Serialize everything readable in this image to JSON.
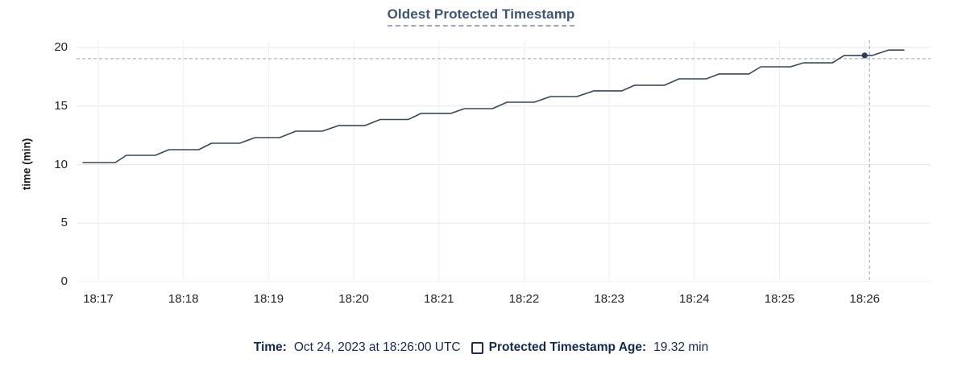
{
  "chart": {
    "title": "Oldest Protected Timestamp",
    "ylabel": "time (min)",
    "legend": {
      "time_label": "Time:",
      "time_value": "Oct 24, 2023 at 18:26:00 UTC",
      "series_label": "Protected Timestamp Age:",
      "series_value": "19.32 min"
    }
  },
  "chart_data": {
    "type": "line",
    "title": "Oldest Protected Timestamp",
    "xlabel": "",
    "ylabel": "time (min)",
    "x_tick_labels": [
      "18:17",
      "18:18",
      "18:19",
      "18:20",
      "18:21",
      "18:22",
      "18:23",
      "18:24",
      "18:25",
      "18:26"
    ],
    "y_ticks": [
      0,
      5,
      10,
      15,
      20
    ],
    "ylim": [
      0,
      20.62
    ],
    "xlim_minutes_after_1817": [
      -0.2554,
      9.7738
    ],
    "grid": true,
    "legend_position": "bottom",
    "series": [
      {
        "name": "Protected Timestamp Age",
        "unit": "min",
        "points_t_minutes_after_1817_vs_min": [
          [
            -0.18,
            10.17
          ],
          [
            0.2,
            10.17
          ],
          [
            0.33,
            10.79
          ],
          [
            0.67,
            10.79
          ],
          [
            0.83,
            11.27
          ],
          [
            1.18,
            11.27
          ],
          [
            1.33,
            11.82
          ],
          [
            1.66,
            11.82
          ],
          [
            1.84,
            12.3
          ],
          [
            2.13,
            12.3
          ],
          [
            2.32,
            12.85
          ],
          [
            2.63,
            12.85
          ],
          [
            2.82,
            13.33
          ],
          [
            3.13,
            13.33
          ],
          [
            3.31,
            13.85
          ],
          [
            3.64,
            13.85
          ],
          [
            3.79,
            14.37
          ],
          [
            4.14,
            14.37
          ],
          [
            4.3,
            14.78
          ],
          [
            4.63,
            14.78
          ],
          [
            4.8,
            15.33
          ],
          [
            5.12,
            15.33
          ],
          [
            5.31,
            15.81
          ],
          [
            5.62,
            15.81
          ],
          [
            5.82,
            16.3
          ],
          [
            6.15,
            16.3
          ],
          [
            6.3,
            16.78
          ],
          [
            6.65,
            16.78
          ],
          [
            6.82,
            17.32
          ],
          [
            7.14,
            17.32
          ],
          [
            7.29,
            17.74
          ],
          [
            7.64,
            17.74
          ],
          [
            7.78,
            18.35
          ],
          [
            8.13,
            18.35
          ],
          [
            8.28,
            18.69
          ],
          [
            8.62,
            18.69
          ],
          [
            8.76,
            19.32
          ],
          [
            9.09,
            19.32
          ],
          [
            9.28,
            19.78
          ],
          [
            9.46,
            19.78
          ]
        ]
      }
    ],
    "crosshair": {
      "t": 9.0,
      "x_label": "18:26",
      "value_min": 19.32
    },
    "colors": {
      "line": "#394659",
      "point": "#2e3c55",
      "crosshair": "#a8b8c6",
      "grid_h": "#e9e9eb",
      "grid_v": "#eeeef0",
      "title": "#3e5573",
      "tick_text": "#222529",
      "legend_text": "#132a4e"
    }
  }
}
